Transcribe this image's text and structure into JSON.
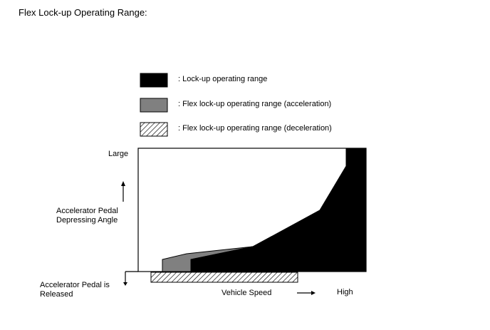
{
  "title": "Flex Lock-up Operating Range:",
  "legend": [
    {
      "key": "lockup",
      "label": ": Lock-up operating range",
      "color": "#000000",
      "fill": "solid"
    },
    {
      "key": "flex_accel",
      "label": ": Flex lock-up operating range (acceleration)",
      "color": "#808080",
      "fill": "solid"
    },
    {
      "key": "flex_decel",
      "label": ": Flex lock-up operating range (deceleration)",
      "color": "#000000",
      "fill": "hatched"
    }
  ],
  "y_axis": {
    "top_label": "Large",
    "title_line1": "Accelerator Pedal",
    "title_line2": "Depressing Angle",
    "bottom_label_line1": "Accelerator Pedal is",
    "bottom_label_line2": "Released"
  },
  "x_axis": {
    "title": "Vehicle Speed",
    "high_label": "High"
  },
  "icons": [
    "arrow-up-icon",
    "arrow-down-icon",
    "arrow-right-icon"
  ]
}
